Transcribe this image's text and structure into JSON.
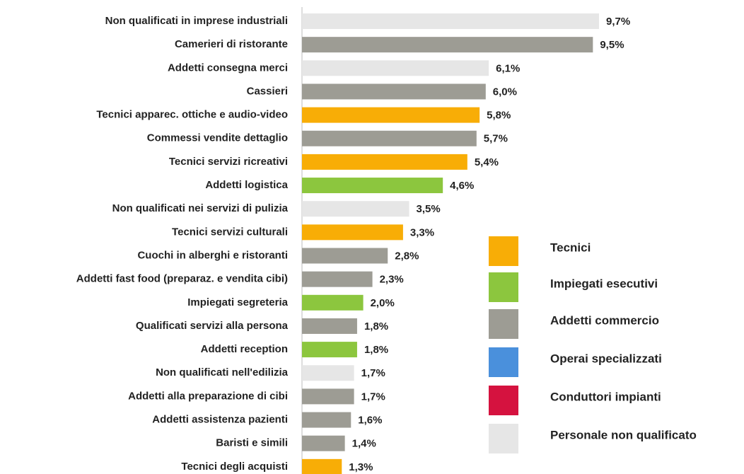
{
  "chart_data": {
    "type": "bar",
    "orientation": "horizontal",
    "categories": [
      "Non qualificati in imprese industriali",
      "Camerieri di ristorante",
      "Addetti consegna merci",
      "Cassieri",
      "Tecnici apparec. ottiche e audio-video",
      "Commessi vendite dettaglio",
      "Tecnici servizi ricreativi",
      "Addetti logistica",
      "Non qualificati nei servizi di pulizia",
      "Tecnici servizi culturali",
      "Cuochi in alberghi e ristoranti",
      "Addetti fast food (preparaz. e vendita cibi)",
      "Impiegati segreteria",
      "Qualificati servizi alla persona",
      "Addetti reception",
      "Non qualificati nell'edilizia",
      "Addetti alla preparazione di cibi",
      "Addetti assistenza pazienti",
      "Baristi e simili",
      "Tecnici degli acquisti"
    ],
    "values": [
      9.7,
      9.5,
      6.1,
      6.0,
      5.8,
      5.7,
      5.4,
      4.6,
      3.5,
      3.3,
      2.8,
      2.3,
      2.0,
      1.8,
      1.8,
      1.7,
      1.7,
      1.6,
      1.4,
      1.3
    ],
    "value_labels": [
      "9,7%",
      "9,5%",
      "6,1%",
      "6,0%",
      "5,8%",
      "5,7%",
      "5,4%",
      "4,6%",
      "3,5%",
      "3,3%",
      "2,8%",
      "2,3%",
      "2,0%",
      "1,8%",
      "1,8%",
      "1,7%",
      "1,7%",
      "1,6%",
      "1,4%",
      "1,3%"
    ],
    "colors": [
      "#e6e6e6",
      "#9d9c94",
      "#e6e6e6",
      "#9d9c94",
      "#f8ad06",
      "#9d9c94",
      "#f8ad06",
      "#8cc63e",
      "#e6e6e6",
      "#f8ad06",
      "#9d9c94",
      "#9d9c94",
      "#8cc63e",
      "#9d9c94",
      "#8cc63e",
      "#e6e6e6",
      "#9d9c94",
      "#9d9c94",
      "#9d9c94",
      "#f8ad06"
    ],
    "xlim": [
      0,
      10
    ],
    "legend": [
      {
        "name": "Tecnici",
        "color": "#f8ad06"
      },
      {
        "name": "Impiegati esecutivi",
        "color": "#8cc63e"
      },
      {
        "name": "Addetti commercio",
        "color": "#9d9c94"
      },
      {
        "name": "Operai specializzati",
        "color": "#4a90dc"
      },
      {
        "name": "Conduttori impianti",
        "color": "#d5123f"
      },
      {
        "name": "Personale non qualificato",
        "color": "#e6e6e6"
      }
    ]
  }
}
